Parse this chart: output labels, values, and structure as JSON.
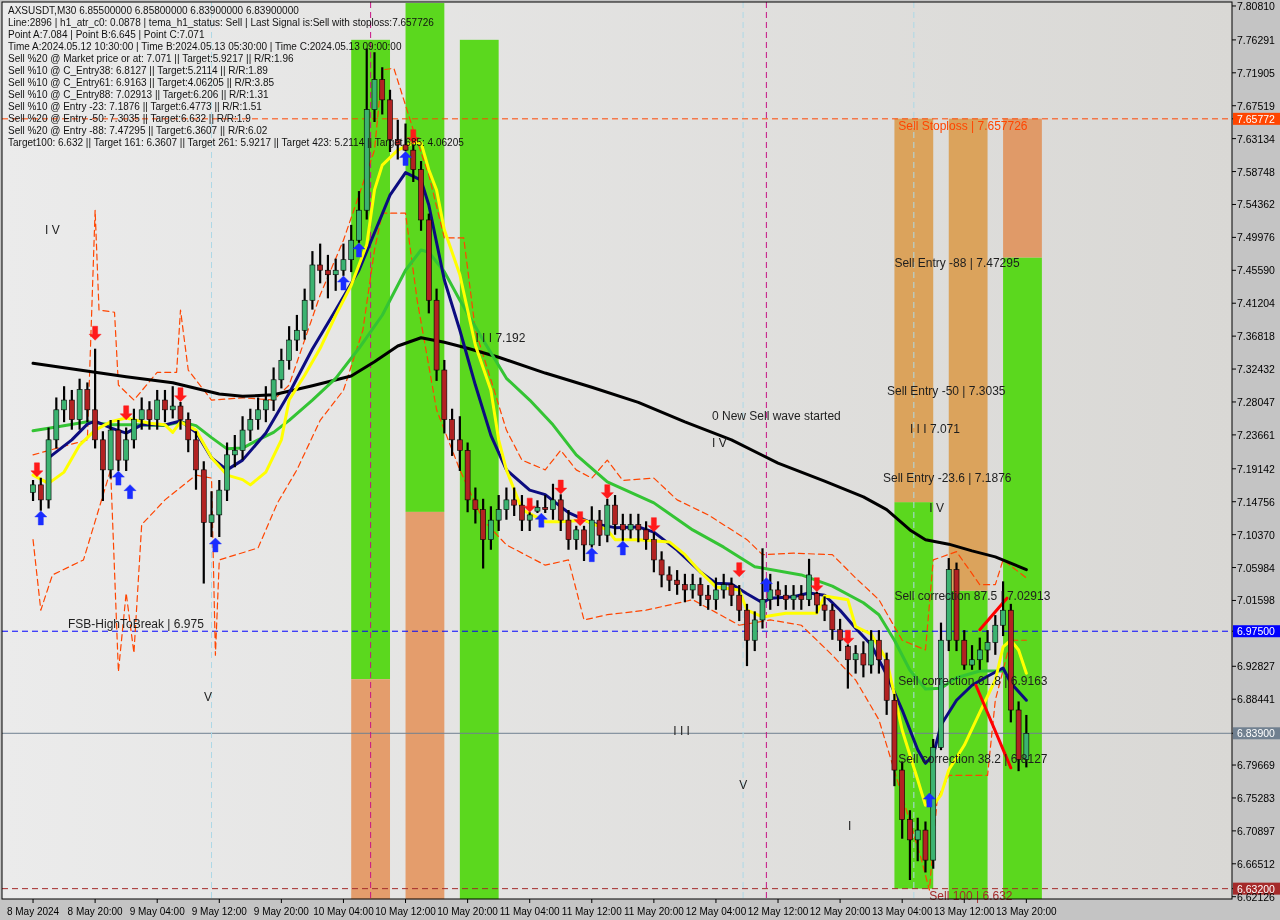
{
  "chart_data": {
    "type": "candlestick",
    "title": "AXSUSDT,M30 6.85500000 6.85800000 6.83900000 6.83900000",
    "xlim": [
      "2024-05-08T08:00",
      "2024-05-14T22:30"
    ],
    "ylim": [
      6.6182,
      7.8134
    ],
    "xticks": [
      {
        "value": "2024-05-08T12:00",
        "label": "8 May 2024"
      },
      {
        "value": "2024-05-08T20:00",
        "label": "8 May 20:00"
      },
      {
        "value": "2024-05-09T04:00",
        "label": "9 May 04:00"
      },
      {
        "value": "2024-05-09T12:00",
        "label": "9 May 12:00"
      },
      {
        "value": "2024-05-09T20:00",
        "label": "9 May 20:00"
      },
      {
        "value": "2024-05-10T04:00",
        "label": "10 May 04:00"
      },
      {
        "value": "2024-05-10T12:00",
        "label": "10 May 12:00"
      },
      {
        "value": "2024-05-10T20:00",
        "label": "10 May 20:00"
      },
      {
        "value": "2024-05-11T04:00",
        "label": "11 May 04:00"
      },
      {
        "value": "2024-05-11T12:00",
        "label": "11 May 12:00"
      },
      {
        "value": "2024-05-11T20:00",
        "label": "11 May 20:00"
      },
      {
        "value": "2024-05-12T04:00",
        "label": "12 May 04:00"
      },
      {
        "value": "2024-05-12T12:00",
        "label": "12 May 12:00"
      },
      {
        "value": "2024-05-12T20:00",
        "label": "12 May 20:00"
      },
      {
        "value": "2024-05-13T04:00",
        "label": "13 May 04:00"
      },
      {
        "value": "2024-05-13T12:00",
        "label": "13 May 12:00"
      },
      {
        "value": "2024-05-13T20:00",
        "label": "13 May 20:00"
      }
    ],
    "yticks": [
      {
        "value": 7.8081,
        "label": "7.80810"
      },
      7.76291,
      7.71905,
      7.67519,
      7.65772,
      7.63134,
      7.58748,
      7.54362,
      7.49976,
      {
        "value": 7.4559,
        "label": "7.45590"
      },
      7.41204,
      7.36818,
      7.32432,
      7.28047,
      7.23661,
      7.19142,
      7.14756,
      {
        "value": 7.1037,
        "label": "7.10370"
      },
      7.05984,
      7.01598,
      {
        "value": 6.975,
        "label": "6.97500"
      },
      6.92827,
      6.88441,
      {
        "value": 6.839,
        "label": "6.83900"
      },
      6.79669,
      6.75283,
      6.70897,
      6.66512,
      {
        "value": 6.632,
        "label": "6.63200"
      },
      6.62126
    ],
    "x": [
      "2024-05-08T12:00",
      "2024-05-08T13:00",
      "2024-05-08T14:00",
      "2024-05-08T15:00",
      "2024-05-08T16:00",
      "2024-05-08T17:00",
      "2024-05-08T18:00",
      "2024-05-08T19:00",
      "2024-05-08T20:00",
      "2024-05-08T21:00",
      "2024-05-08T22:00",
      "2024-05-08T23:00",
      "2024-05-09T00:00",
      "2024-05-09T01:00",
      "2024-05-09T02:00",
      "2024-05-09T03:00",
      "2024-05-09T04:00",
      "2024-05-09T05:00",
      "2024-05-09T06:00",
      "2024-05-09T07:00",
      "2024-05-09T08:00",
      "2024-05-09T09:00",
      "2024-05-09T10:00",
      "2024-05-09T11:00",
      "2024-05-09T12:00",
      "2024-05-09T13:00",
      "2024-05-09T14:00",
      "2024-05-09T15:00",
      "2024-05-09T16:00",
      "2024-05-09T17:00",
      "2024-05-09T18:00",
      "2024-05-09T19:00",
      "2024-05-09T20:00",
      "2024-05-09T21:00",
      "2024-05-09T22:00",
      "2024-05-09T23:00",
      "2024-05-10T00:00",
      "2024-05-10T01:00",
      "2024-05-10T02:00",
      "2024-05-10T03:00",
      "2024-05-10T04:00",
      "2024-05-10T05:00",
      "2024-05-10T06:00",
      "2024-05-10T07:00",
      "2024-05-10T08:00",
      "2024-05-10T09:00",
      "2024-05-10T10:00",
      "2024-05-10T11:00",
      "2024-05-10T12:00",
      "2024-05-10T13:00",
      "2024-05-10T14:00",
      "2024-05-10T15:00",
      "2024-05-10T16:00",
      "2024-05-10T17:00",
      "2024-05-10T18:00",
      "2024-05-10T19:00",
      "2024-05-10T20:00",
      "2024-05-10T21:00",
      "2024-05-10T22:00",
      "2024-05-10T23:00",
      "2024-05-11T00:00",
      "2024-05-11T01:00",
      "2024-05-11T02:00",
      "2024-05-11T03:00",
      "2024-05-11T04:00",
      "2024-05-11T05:00",
      "2024-05-11T06:00",
      "2024-05-11T07:00",
      "2024-05-11T08:00",
      "2024-05-11T09:00",
      "2024-05-11T10:00",
      "2024-05-11T11:00",
      "2024-05-11T12:00",
      "2024-05-11T13:00",
      "2024-05-11T14:00",
      "2024-05-11T15:00",
      "2024-05-11T16:00",
      "2024-05-11T17:00",
      "2024-05-11T18:00",
      "2024-05-11T19:00",
      "2024-05-11T20:00",
      "2024-05-11T21:00",
      "2024-05-11T22:00",
      "2024-05-11T23:00",
      "2024-05-12T00:00",
      "2024-05-12T01:00",
      "2024-05-12T02:00",
      "2024-05-12T03:00",
      "2024-05-12T04:00",
      "2024-05-12T05:00",
      "2024-05-12T06:00",
      "2024-05-12T07:00",
      "2024-05-12T08:00",
      "2024-05-12T09:00",
      "2024-05-12T10:00",
      "2024-05-12T11:00",
      "2024-05-12T12:00",
      "2024-05-12T13:00",
      "2024-05-12T14:00",
      "2024-05-12T15:00",
      "2024-05-12T16:00",
      "2024-05-12T17:00",
      "2024-05-12T18:00",
      "2024-05-12T19:00",
      "2024-05-12T20:00",
      "2024-05-12T21:00",
      "2024-05-12T22:00",
      "2024-05-12T23:00",
      "2024-05-13T00:00",
      "2024-05-13T01:00",
      "2024-05-13T02:00",
      "2024-05-13T03:00",
      "2024-05-13T04:00",
      "2024-05-13T05:00",
      "2024-05-13T06:00",
      "2024-05-13T07:00",
      "2024-05-13T08:00",
      "2024-05-13T09:00",
      "2024-05-13T10:00",
      "2024-05-13T11:00",
      "2024-05-13T12:00",
      "2024-05-13T13:00",
      "2024-05-13T14:00",
      "2024-05-13T15:00",
      "2024-05-13T16:00",
      "2024-05-13T17:00",
      "2024-05-13T18:00",
      "2024-05-13T19:00",
      "2024-05-13T20:00"
    ],
    "ohlc": [
      [
        7.16,
        7.175,
        7.15,
        7.17
      ],
      [
        7.17,
        7.178,
        7.137,
        7.15
      ],
      [
        7.15,
        7.245,
        7.14,
        7.23
      ],
      [
        7.23,
        7.285,
        7.22,
        7.27
      ],
      [
        7.27,
        7.3,
        7.255,
        7.283
      ],
      [
        7.283,
        7.295,
        7.245,
        7.257
      ],
      [
        7.257,
        7.31,
        7.245,
        7.297
      ],
      [
        7.297,
        7.305,
        7.255,
        7.27
      ],
      [
        7.27,
        7.35,
        7.22,
        7.23
      ],
      [
        7.23,
        7.24,
        7.15,
        7.19
      ],
      [
        7.19,
        7.255,
        7.18,
        7.243
      ],
      [
        7.243,
        7.255,
        7.19,
        7.203
      ],
      [
        7.203,
        7.245,
        7.19,
        7.23
      ],
      [
        7.23,
        7.27,
        7.22,
        7.257
      ],
      [
        7.257,
        7.285,
        7.245,
        7.27
      ],
      [
        7.27,
        7.28,
        7.245,
        7.257
      ],
      [
        7.257,
        7.295,
        7.245,
        7.283
      ],
      [
        7.283,
        7.295,
        7.255,
        7.27
      ],
      [
        7.27,
        7.3,
        7.26,
        7.275
      ],
      [
        7.275,
        7.279,
        7.245,
        7.257
      ],
      [
        7.257,
        7.265,
        7.215,
        7.23
      ],
      [
        7.23,
        7.24,
        7.165,
        7.19
      ],
      [
        7.19,
        7.2,
        7.04,
        7.12
      ],
      [
        7.12,
        7.16,
        7.102,
        7.13
      ],
      [
        7.13,
        7.175,
        7.102,
        7.163
      ],
      [
        7.163,
        7.225,
        7.15,
        7.21
      ],
      [
        7.21,
        7.235,
        7.195,
        7.216
      ],
      [
        7.216,
        7.26,
        7.205,
        7.243
      ],
      [
        7.243,
        7.27,
        7.23,
        7.257
      ],
      [
        7.257,
        7.285,
        7.245,
        7.27
      ],
      [
        7.27,
        7.3,
        7.255,
        7.283
      ],
      [
        7.283,
        7.325,
        7.27,
        7.31
      ],
      [
        7.31,
        7.35,
        7.3,
        7.336
      ],
      [
        7.336,
        7.38,
        7.325,
        7.363
      ],
      [
        7.363,
        7.395,
        7.35,
        7.376
      ],
      [
        7.376,
        7.43,
        7.365,
        7.416
      ],
      [
        7.416,
        7.48,
        7.405,
        7.463
      ],
      [
        7.463,
        7.49,
        7.44,
        7.456
      ],
      [
        7.456,
        7.475,
        7.42,
        7.45
      ],
      [
        7.45,
        7.47,
        7.43,
        7.456
      ],
      [
        7.456,
        7.49,
        7.45,
        7.47
      ],
      [
        7.47,
        7.515,
        7.455,
        7.496
      ],
      [
        7.496,
        7.56,
        7.494,
        7.536
      ],
      [
        7.536,
        7.75,
        7.525,
        7.67
      ],
      [
        7.67,
        7.745,
        7.655,
        7.71
      ],
      [
        7.71,
        7.725,
        7.665,
        7.683
      ],
      [
        7.683,
        7.695,
        7.615,
        7.63
      ],
      [
        7.63,
        7.655,
        7.605,
        7.623
      ],
      [
        7.623,
        7.65,
        7.616,
        7.616
      ],
      [
        7.616,
        7.622,
        7.575,
        7.59
      ],
      [
        7.59,
        7.6,
        7.51,
        7.523
      ],
      [
        7.523,
        7.53,
        7.4,
        7.416
      ],
      [
        7.416,
        7.43,
        7.31,
        7.323
      ],
      [
        7.323,
        7.335,
        7.24,
        7.257
      ],
      [
        7.257,
        7.27,
        7.21,
        7.23
      ],
      [
        7.23,
        7.26,
        7.19,
        7.216
      ],
      [
        7.216,
        7.225,
        7.135,
        7.15
      ],
      [
        7.15,
        7.165,
        7.12,
        7.137
      ],
      [
        7.137,
        7.15,
        7.06,
        7.097
      ],
      [
        7.097,
        7.14,
        7.085,
        7.123
      ],
      [
        7.123,
        7.155,
        7.11,
        7.137
      ],
      [
        7.137,
        7.165,
        7.125,
        7.15
      ],
      [
        7.15,
        7.165,
        7.13,
        7.143
      ],
      [
        7.143,
        7.155,
        7.11,
        7.123
      ],
      [
        7.123,
        7.132,
        7.11,
        7.13
      ],
      [
        7.135,
        7.148,
        7.134,
        7.14
      ],
      [
        7.14,
        7.155,
        7.134,
        7.137
      ],
      [
        7.137,
        7.17,
        7.125,
        7.15
      ],
      [
        7.15,
        7.156,
        7.11,
        7.123
      ],
      [
        7.123,
        7.135,
        7.085,
        7.097
      ],
      [
        7.097,
        7.114,
        7.085,
        7.11
      ],
      [
        7.11,
        7.114,
        7.07,
        7.09
      ],
      [
        7.09,
        7.14,
        7.088,
        7.123
      ],
      [
        7.123,
        7.135,
        7.09,
        7.103
      ],
      [
        7.103,
        7.15,
        7.095,
        7.143
      ],
      [
        7.143,
        7.155,
        7.105,
        7.117
      ],
      [
        7.117,
        7.13,
        7.097,
        7.11
      ],
      [
        7.11,
        7.13,
        7.1,
        7.117
      ],
      [
        7.117,
        7.13,
        7.095,
        7.11
      ],
      [
        7.11,
        7.12,
        7.085,
        7.097
      ],
      [
        7.097,
        7.105,
        7.055,
        7.07
      ],
      [
        7.07,
        7.08,
        7.035,
        7.05
      ],
      [
        7.05,
        7.06,
        7.03,
        7.043
      ],
      [
        7.043,
        7.055,
        7.025,
        7.037
      ],
      [
        7.037,
        7.05,
        7.015,
        7.03
      ],
      [
        7.03,
        7.05,
        7.02,
        7.037
      ],
      [
        7.037,
        7.045,
        7.01,
        7.023
      ],
      [
        7.023,
        7.035,
        7.005,
        7.017
      ],
      [
        7.017,
        7.045,
        7.005,
        7.03
      ],
      [
        7.03,
        7.05,
        7.02,
        7.037
      ],
      [
        7.037,
        7.045,
        7.01,
        7.023
      ],
      [
        7.023,
        7.035,
        6.99,
        7.003
      ],
      [
        7.003,
        7.01,
        6.93,
        6.963
      ],
      [
        6.963,
        7.0,
        6.95,
        6.99
      ],
      [
        6.99,
        7.084,
        6.98,
        7.017
      ],
      [
        7.017,
        7.05,
        7.005,
        7.03
      ],
      [
        7.03,
        7.04,
        7.01,
        7.023
      ],
      [
        7.023,
        7.035,
        7.005,
        7.017
      ],
      [
        7.017,
        7.035,
        7.005,
        7.023
      ],
      [
        7.023,
        7.035,
        7.005,
        7.017
      ],
      [
        7.017,
        7.07,
        7.01,
        7.05
      ],
      [
        7.025,
        7.026,
        7.0,
        7.01
      ],
      [
        7.01,
        7.02,
        6.99,
        7.003
      ],
      [
        7.003,
        7.01,
        6.965,
        6.977
      ],
      [
        6.977,
        6.99,
        6.95,
        6.963
      ],
      [
        6.955,
        6.956,
        6.9,
        6.937
      ],
      [
        6.937,
        6.955,
        6.92,
        6.945
      ],
      [
        6.945,
        6.96,
        6.915,
        6.93
      ],
      [
        6.93,
        6.975,
        6.92,
        6.963
      ],
      [
        6.963,
        6.975,
        6.92,
        6.937
      ],
      [
        6.937,
        6.945,
        6.865,
        6.883
      ],
      [
        6.883,
        6.89,
        6.77,
        6.79
      ],
      [
        6.79,
        6.8,
        6.7,
        6.724
      ],
      [
        6.724,
        6.735,
        6.645,
        6.697
      ],
      [
        6.697,
        6.725,
        6.67,
        6.71
      ],
      [
        6.71,
        6.72,
        6.655,
        6.67
      ],
      [
        6.67,
        6.83,
        6.66,
        6.82
      ],
      [
        6.82,
        6.985,
        6.818,
        6.963
      ],
      [
        6.963,
        7.071,
        6.95,
        7.057
      ],
      [
        7.057,
        7.065,
        6.95,
        6.963
      ],
      [
        6.963,
        6.975,
        6.925,
        6.93
      ],
      [
        6.93,
        6.955,
        6.925,
        6.937
      ],
      [
        6.937,
        6.965,
        6.925,
        6.95
      ],
      [
        6.95,
        6.975,
        6.935,
        6.96
      ],
      [
        6.96,
        6.995,
        6.945,
        6.983
      ],
      [
        6.983,
        7.04,
        6.97,
        7.003
      ],
      [
        7.003,
        7.01,
        6.855,
        6.87
      ],
      [
        6.87,
        6.88,
        6.79,
        6.804
      ],
      [
        6.804,
        6.862,
        6.795,
        6.839
      ]
    ],
    "colors": [
      "#3cb371",
      "#b22222",
      "#3cb371",
      "#3cb371",
      "#3cb371",
      "#b22222",
      "#3cb371",
      "#b22222",
      "#b22222",
      "#b22222",
      "#3cb371",
      "#b22222",
      "#3cb371",
      "#3cb371",
      "#3cb371",
      "#b22222",
      "#3cb371",
      "#b22222",
      "#3cb371",
      "#b22222",
      "#b22222",
      "#b22222",
      "#b22222",
      "#3cb371",
      "#3cb371",
      "#3cb371",
      "#3cb371",
      "#3cb371",
      "#3cb371",
      "#3cb371",
      "#3cb371",
      "#3cb371",
      "#3cb371",
      "#3cb371",
      "#3cb371",
      "#3cb371",
      "#3cb371",
      "#b22222",
      "#b22222",
      "#3cb371",
      "#3cb371",
      "#3cb371",
      "#3cb371",
      "#3cb371",
      "#3cb371",
      "#b22222",
      "#b22222",
      "#b22222",
      "#b22222",
      "#b22222",
      "#b22222",
      "#b22222",
      "#b22222",
      "#b22222",
      "#b22222",
      "#b22222",
      "#b22222",
      "#b22222",
      "#b22222",
      "#3cb371",
      "#3cb371",
      "#3cb371",
      "#b22222",
      "#b22222",
      "#3cb371",
      "#3cb371",
      "#b22222",
      "#3cb371",
      "#b22222",
      "#b22222",
      "#3cb371",
      "#b22222",
      "#3cb371",
      "#b22222",
      "#3cb371",
      "#b22222",
      "#b22222",
      "#3cb371",
      "#b22222",
      "#b22222",
      "#b22222",
      "#b22222",
      "#b22222",
      "#b22222",
      "#b22222",
      "#3cb371",
      "#b22222",
      "#b22222",
      "#3cb371",
      "#3cb371",
      "#b22222",
      "#b22222",
      "#b22222",
      "#3cb371",
      "#3cb371",
      "#3cb371",
      "#b22222",
      "#b22222",
      "#3cb371",
      "#b22222",
      "#3cb371",
      "#b22222",
      "#b22222",
      "#b22222",
      "#b22222",
      "#b22222",
      "#3cb371",
      "#b22222",
      "#3cb371",
      "#b22222",
      "#b22222",
      "#b22222",
      "#b22222",
      "#b22222",
      "#3cb371",
      "#b22222",
      "#3cb371",
      "#3cb371",
      "#3cb371",
      "#b22222",
      "#b22222",
      "#3cb371",
      "#3cb371",
      "#3cb371",
      "#3cb371",
      "#3cb371",
      "#b22222",
      "#b22222",
      "#3cb371"
    ],
    "series": [
      {
        "type": "bar",
        "color": "#5bd81e",
        "x": [
          "2024-05-10T07:30",
          "2024-05-10T14:30",
          "2024-05-10T21:30",
          "2024-05-13T05:30",
          "2024-05-13T12:30",
          "2024-05-13T19:30"
        ],
        "base": [
          6.911,
          7.134,
          6.618,
          6.632,
          6.618,
          6.618
        ],
        "values": [
          0.852,
          0.678,
          1.145,
          0.515,
          0.411,
          0.855
        ]
      },
      {
        "type": "bar",
        "x": [
          "2024-05-10T07:30",
          "2024-05-10T14:30",
          "2024-05-13T05:30",
          "2024-05-13T12:30",
          "2024-05-13T19:30"
        ],
        "base": [
          6.618,
          6.618,
          7.147,
          7.029,
          7.473
        ],
        "values": [
          0.293,
          0.516,
          0.511,
          0.629,
          0.185
        ],
        "colors": [
          "#e49d6c",
          "#e49d6c",
          "#dba35c",
          "#dba35c",
          "#e09a68"
        ]
      },
      {
        "type": "line",
        "color": "#ff4500",
        "line_style": "dashed",
        "x": [
          "2024-05-08T12:00",
          "2024-05-08T19:00",
          "2024-05-08T20:00",
          "2024-05-08T20:30",
          "2024-05-08T22:30",
          "2024-05-08T23:00",
          "2024-05-09T01:00",
          "2024-05-09T04:00",
          "2024-05-09T06:30",
          "2024-05-09T07:00",
          "2024-05-09T08:00",
          "2024-05-09T11:00",
          "2024-05-09T15:00",
          "2024-05-09T19:00",
          "2024-05-09T21:00",
          "2024-05-10T01:00",
          "2024-05-10T04:00",
          "2024-05-10T08:00",
          "2024-05-10T09:00",
          "2024-05-10T10:30",
          "2024-05-10T13:00",
          "2024-05-10T15:00",
          "2024-05-10T17:00",
          "2024-05-10T19:30",
          "2024-05-10T21:00",
          "2024-05-10T23:00",
          "2024-05-11T01:00",
          "2024-05-11T03:00",
          "2024-05-11T06:00",
          "2024-05-11T08:00",
          "2024-05-11T10:00",
          "2024-05-11T12:00",
          "2024-05-11T14:00",
          "2024-05-11T16:00",
          "2024-05-11T20:00",
          "2024-05-11T23:00",
          "2024-05-12T03:00",
          "2024-05-12T08:00",
          "2024-05-12T10:00",
          "2024-05-12T14:00",
          "2024-05-12T19:00",
          "2024-05-12T22:00",
          "2024-05-13T01:00",
          "2024-05-13T04:00",
          "2024-05-13T07:00",
          "2024-05-13T08:00",
          "2024-05-13T11:00",
          "2024-05-13T14:00",
          "2024-05-13T16:00",
          "2024-05-13T17:00",
          "2024-05-13T20:00"
        ],
        "values": [
          7.21,
          7.23,
          7.536,
          7.403,
          7.4,
          7.303,
          7.283,
          7.32,
          7.32,
          7.403,
          7.323,
          7.283,
          7.286,
          7.283,
          7.303,
          7.423,
          7.496,
          7.616,
          7.723,
          7.725,
          7.643,
          7.583,
          7.499,
          7.499,
          7.376,
          7.31,
          7.243,
          7.203,
          7.19,
          7.216,
          7.19,
          7.179,
          7.203,
          7.176,
          7.179,
          7.15,
          7.13,
          7.097,
          7.077,
          7.079,
          7.077,
          7.046,
          7.017,
          6.963,
          6.95,
          7.07,
          7.081,
          7.037,
          7.037,
          7.07,
          7.046
        ]
      },
      {
        "type": "line",
        "color": "#ff4500",
        "line_style": "dashed",
        "x": [
          "2024-05-08T12:00",
          "2024-05-08T13:00",
          "2024-05-08T14:30",
          "2024-05-08T18:30",
          "2024-05-08T22:00",
          "2024-05-08T23:00",
          "2024-05-09T00:00",
          "2024-05-09T01:00",
          "2024-05-09T02:00",
          "2024-05-09T05:00",
          "2024-05-09T09:00",
          "2024-05-09T11:00",
          "2024-05-09T11:30",
          "2024-05-09T12:00",
          "2024-05-09T17:00",
          "2024-05-09T19:30",
          "2024-05-09T22:00",
          "2024-05-10T01:00",
          "2024-05-10T04:00",
          "2024-05-10T06:30",
          "2024-05-10T08:00",
          "2024-05-10T09:00",
          "2024-05-10T12:00",
          "2024-05-10T13:30",
          "2024-05-10T16:00",
          "2024-05-10T19:00",
          "2024-05-10T22:00",
          "2024-05-11T01:00",
          "2024-05-11T06:00",
          "2024-05-11T09:00",
          "2024-05-11T11:00",
          "2024-05-11T14:00",
          "2024-05-11T19:00",
          "2024-05-12T01:00",
          "2024-05-12T07:00",
          "2024-05-12T11:00",
          "2024-05-12T15:00",
          "2024-05-12T19:00",
          "2024-05-12T22:00",
          "2024-05-13T01:00",
          "2024-05-13T06:30",
          "2024-05-13T07:30",
          "2024-05-13T08:30",
          "2024-05-13T10:00",
          "2024-05-13T15:00",
          "2024-05-13T16:00",
          "2024-05-13T18:00",
          "2024-05-13T20:00"
        ],
        "values": [
          7.097,
          7.003,
          7.05,
          7.07,
          7.19,
          6.921,
          7.026,
          6.946,
          7.117,
          7.15,
          7.183,
          7.179,
          6.943,
          7.07,
          7.086,
          7.146,
          7.19,
          7.256,
          7.296,
          7.376,
          7.483,
          7.532,
          7.532,
          7.416,
          7.27,
          7.19,
          7.123,
          7.09,
          7.063,
          7.07,
          6.99,
          6.997,
          7.003,
          7.017,
          6.983,
          6.99,
          6.983,
          6.943,
          6.91,
          6.857,
          6.67,
          6.63,
          6.75,
          6.783,
          6.783,
          6.883,
          6.963,
          6.963
        ]
      },
      {
        "type": "line",
        "color": "#000000",
        "x": [
          "2024-05-08T12:00",
          "2024-05-08T18:00",
          "2024-05-09T00:00",
          "2024-05-09T06:00",
          "2024-05-09T12:00",
          "2024-05-09T15:00",
          "2024-05-09T19:00",
          "2024-05-10T00:00",
          "2024-05-10T05:00",
          "2024-05-10T08:00",
          "2024-05-10T11:00",
          "2024-05-10T14:00",
          "2024-05-10T17:00",
          "2024-05-10T20:00",
          "2024-05-11T00:00",
          "2024-05-11T06:00",
          "2024-05-11T12:00",
          "2024-05-11T18:00",
          "2024-05-12T00:00",
          "2024-05-12T06:00",
          "2024-05-12T12:00",
          "2024-05-12T18:00",
          "2024-05-12T23:00",
          "2024-05-13T02:00",
          "2024-05-13T05:00",
          "2024-05-13T07:00",
          "2024-05-13T10:00",
          "2024-05-13T13:00",
          "2024-05-13T16:00",
          "2024-05-13T20:00"
        ],
        "values": [
          7.332,
          7.323,
          7.314,
          7.306,
          7.291,
          7.288,
          7.29,
          7.302,
          7.315,
          7.334,
          7.355,
          7.366,
          7.36,
          7.352,
          7.34,
          7.319,
          7.3,
          7.28,
          7.254,
          7.23,
          7.199,
          7.175,
          7.154,
          7.137,
          7.11,
          7.097,
          7.091,
          7.082,
          7.074,
          7.057
        ]
      },
      {
        "type": "line",
        "color": "#34c434",
        "x": [
          "2024-05-08T12:00",
          "2024-05-08T15:00",
          "2024-05-08T19:00",
          "2024-05-08T22:00",
          "2024-05-09T01:00",
          "2024-05-09T05:00",
          "2024-05-09T07:00",
          "2024-05-09T09:00",
          "2024-05-09T11:00",
          "2024-05-09T13:00",
          "2024-05-09T15:00",
          "2024-05-09T17:00",
          "2024-05-09T19:00",
          "2024-05-09T21:00",
          "2024-05-10T00:00",
          "2024-05-10T03:00",
          "2024-05-10T06:00",
          "2024-05-10T09:00",
          "2024-05-10T12:00",
          "2024-05-10T14:00",
          "2024-05-10T15:00",
          "2024-05-10T17:00",
          "2024-05-10T19:00",
          "2024-05-10T22:00",
          "2024-05-11T01:00",
          "2024-05-11T04:00",
          "2024-05-11T07:00",
          "2024-05-11T10:00",
          "2024-05-11T14:00",
          "2024-05-11T20:00",
          "2024-05-12T01:00",
          "2024-05-12T05:00",
          "2024-05-12T09:00",
          "2024-05-12T15:00",
          "2024-05-12T19:00",
          "2024-05-12T23:00",
          "2024-05-13T01:00",
          "2024-05-13T03:00",
          "2024-05-13T05:00",
          "2024-05-13T07:00",
          "2024-05-13T09:00",
          "2024-05-13T11:00",
          "2024-05-13T14:00",
          "2024-05-13T17:00"
        ],
        "values": [
          7.242,
          7.247,
          7.254,
          7.25,
          7.25,
          7.249,
          7.254,
          7.249,
          7.233,
          7.218,
          7.219,
          7.23,
          7.24,
          7.256,
          7.283,
          7.312,
          7.352,
          7.396,
          7.456,
          7.483,
          7.48,
          7.454,
          7.416,
          7.363,
          7.312,
          7.283,
          7.25,
          7.21,
          7.174,
          7.146,
          7.11,
          7.087,
          7.061,
          7.05,
          7.035,
          7.013,
          6.997,
          6.963,
          6.923,
          6.898,
          6.899,
          6.913,
          6.922,
          6.922
        ]
      },
      {
        "type": "line",
        "color": "#0c0c80",
        "x": [
          "2024-05-08T14:00",
          "2024-05-08T17:00",
          "2024-05-08T19:00",
          "2024-05-08T20:00",
          "2024-05-08T22:00",
          "2024-05-09T00:00",
          "2024-05-09T02:00",
          "2024-05-09T05:00",
          "2024-05-09T07:00",
          "2024-05-09T09:00",
          "2024-05-09T11:00",
          "2024-05-09T13:00",
          "2024-05-09T15:00",
          "2024-05-09T18:00",
          "2024-05-09T21:00",
          "2024-05-10T00:00",
          "2024-05-10T03:00",
          "2024-05-10T06:00",
          "2024-05-10T08:00",
          "2024-05-10T10:00",
          "2024-05-10T12:00",
          "2024-05-10T14:00",
          "2024-05-10T15:00",
          "2024-05-10T17:00",
          "2024-05-10T19:00",
          "2024-05-10T21:00",
          "2024-05-10T23:00",
          "2024-05-11T01:00",
          "2024-05-11T04:00",
          "2024-05-11T06:00",
          "2024-05-11T09:00",
          "2024-05-11T12:00",
          "2024-05-11T15:00",
          "2024-05-11T18:00",
          "2024-05-11T20:00",
          "2024-05-11T23:00",
          "2024-05-12T02:00",
          "2024-05-12T04:00",
          "2024-05-12T06:00",
          "2024-05-12T08:00",
          "2024-05-12T10:00",
          "2024-05-12T11:00",
          "2024-05-12T14:00",
          "2024-05-12T16:00",
          "2024-05-12T18:00",
          "2024-05-12T20:00",
          "2024-05-12T22:00",
          "2024-05-13T00:00",
          "2024-05-13T02:00",
          "2024-05-13T04:00",
          "2024-05-13T06:00",
          "2024-05-13T07:00",
          "2024-05-13T08:00",
          "2024-05-13T09:00",
          "2024-05-13T11:00",
          "2024-05-13T13:00",
          "2024-05-13T15:00",
          "2024-05-13T17:00",
          "2024-05-13T18:00",
          "2024-05-13T20:00"
        ],
        "values": [
          7.206,
          7.23,
          7.251,
          7.255,
          7.246,
          7.239,
          7.25,
          7.25,
          7.255,
          7.24,
          7.206,
          7.19,
          7.203,
          7.239,
          7.292,
          7.351,
          7.403,
          7.456,
          7.506,
          7.556,
          7.586,
          7.576,
          7.543,
          7.443,
          7.376,
          7.303,
          7.236,
          7.19,
          7.163,
          7.157,
          7.133,
          7.119,
          7.113,
          7.114,
          7.107,
          7.083,
          7.054,
          7.039,
          7.038,
          7.025,
          7.013,
          7.019,
          7.021,
          7.026,
          7.023,
          7.003,
          6.979,
          6.957,
          6.917,
          6.87,
          6.817,
          6.799,
          6.81,
          6.85,
          6.883,
          6.903,
          6.915,
          6.926,
          6.906,
          6.883
        ]
      },
      {
        "type": "line",
        "color": "#ffff00",
        "x": [
          "2024-05-08T12:00",
          "2024-05-08T14:00",
          "2024-05-08T16:00",
          "2024-05-08T18:00",
          "2024-05-08T20:00",
          "2024-05-08T22:00",
          "2024-05-09T00:00",
          "2024-05-09T03:00",
          "2024-05-09T05:00",
          "2024-05-09T06:00",
          "2024-05-09T07:00",
          "2024-05-09T09:00",
          "2024-05-09T11:00",
          "2024-05-09T13:00",
          "2024-05-09T15:00",
          "2024-05-09T16:00",
          "2024-05-09T18:00",
          "2024-05-09T20:00",
          "2024-05-09T21:00",
          "2024-05-09T23:00",
          "2024-05-10T01:00",
          "2024-05-10T03:00",
          "2024-05-10T05:00",
          "2024-05-10T07:00",
          "2024-05-10T08:00",
          "2024-05-10T09:00",
          "2024-05-10T11:00",
          "2024-05-10T13:00",
          "2024-05-10T14:00",
          "2024-05-10T15:00",
          "2024-05-10T16:00",
          "2024-05-10T17:00",
          "2024-05-10T19:00",
          "2024-05-10T21:00",
          "2024-05-10T23:00",
          "2024-05-11T00:00",
          "2024-05-11T01:00",
          "2024-05-11T03:00",
          "2024-05-11T06:00",
          "2024-05-11T08:00",
          "2024-05-11T11:00",
          "2024-05-11T14:00",
          "2024-05-11T15:00",
          "2024-05-11T18:00",
          "2024-05-11T22:00",
          "2024-05-12T00:00",
          "2024-05-12T02:00",
          "2024-05-12T04:00",
          "2024-05-12T07:00",
          "2024-05-12T08:00",
          "2024-05-12T10:00",
          "2024-05-12T13:00",
          "2024-05-12T17:00",
          "2024-05-12T18:00",
          "2024-05-12T21:00",
          "2024-05-12T22:00",
          "2024-05-13T00:00",
          "2024-05-13T02:00",
          "2024-05-13T04:00",
          "2024-05-13T06:00",
          "2024-05-13T07:00",
          "2024-05-13T08:00",
          "2024-05-13T09:00",
          "2024-05-13T10:00",
          "2024-05-13T12:00",
          "2024-05-13T14:00",
          "2024-05-13T16:00",
          "2024-05-13T17:00",
          "2024-05-13T18:00",
          "2024-05-13T19:00",
          "2024-05-13T20:00"
        ],
        "values": [
          7.183,
          7.172,
          7.187,
          7.223,
          7.243,
          7.254,
          7.259,
          7.252,
          7.25,
          7.24,
          7.254,
          7.243,
          7.206,
          7.183,
          7.177,
          7.17,
          7.187,
          7.23,
          7.283,
          7.316,
          7.352,
          7.396,
          7.436,
          7.49,
          7.563,
          7.596,
          7.616,
          7.626,
          7.626,
          7.59,
          7.563,
          7.51,
          7.45,
          7.356,
          7.296,
          7.23,
          7.19,
          7.137,
          7.121,
          7.121,
          7.123,
          7.11,
          7.097,
          7.097,
          7.094,
          7.077,
          7.054,
          7.034,
          7.03,
          7.003,
          6.994,
          6.999,
          6.999,
          7.022,
          7.017,
          6.981,
          6.971,
          6.937,
          6.843,
          6.777,
          6.743,
          6.743,
          6.757,
          6.79,
          6.823,
          6.867,
          6.91,
          6.954,
          6.963,
          6.95,
          6.919
        ]
      },
      {
        "type": "line",
        "color": "#ff0000",
        "x": [
          "2024-05-13T13:30",
          "2024-05-13T18:00"
        ],
        "values": [
          6.903,
          6.793
        ]
      },
      {
        "type": "line",
        "color": "#ff0000",
        "x": [
          "2024-05-13T14:00",
          "2024-05-13T17:30"
        ],
        "values": [
          6.977,
          7.019
        ]
      },
      {
        "type": "scatter",
        "marker": "triangle",
        "color": "#ff1a1a",
        "x": [
          "2024-05-08T12:30",
          "2024-05-08T20:00",
          "2024-05-09T00:00",
          "2024-05-09T07:00",
          "2024-05-10T13:00",
          "2024-05-11T04:00",
          "2024-05-11T08:00",
          "2024-05-11T10:30",
          "2024-05-11T14:00",
          "2024-05-11T20:00",
          "2024-05-12T07:00",
          "2024-05-12T17:00",
          "2024-05-12T21:00"
        ],
        "values": [
          7.19,
          7.372,
          7.266,
          7.29,
          7.634,
          7.143,
          7.167,
          7.125,
          7.161,
          7.117,
          7.057,
          7.037,
          6.967
        ]
      },
      {
        "type": "scatter",
        "marker": "triangle",
        "color": "#1a2cff",
        "x": [
          "2024-05-08T13:00",
          "2024-05-08T23:00",
          "2024-05-09T00:30",
          "2024-05-09T11:30",
          "2024-05-10T04:00",
          "2024-05-10T06:00",
          "2024-05-10T12:00",
          "2024-05-11T05:30",
          "2024-05-11T12:00",
          "2024-05-11T16:00",
          "2024-05-12T10:30",
          "2024-05-13T07:30"
        ],
        "values": [
          7.126,
          7.179,
          7.161,
          7.09,
          7.439,
          7.483,
          7.605,
          7.123,
          7.077,
          7.086,
          7.037,
          6.75
        ]
      }
    ],
    "ref_lines": [
      {
        "axis": "y",
        "value": 7.657726,
        "color": "#ff4500",
        "line_style": "dashed"
      },
      {
        "axis": "y",
        "value": 6.975,
        "color": "#0000ff",
        "line_style": "dashed",
        "label": "FSB-HighToBreak | 6.975"
      },
      {
        "axis": "y",
        "value": 6.839,
        "color": "#708090",
        "line_style": "solid"
      },
      {
        "axis": "y",
        "value": 6.632,
        "color": "#a52a2a",
        "line_style": "dashed"
      },
      {
        "axis": "x",
        "value": "2024-05-09T11:00",
        "color": "#add8e6",
        "line_style": "dashed"
      },
      {
        "axis": "x",
        "value": "2024-05-10T07:30",
        "color": "#c71585",
        "line_style": "dashed"
      },
      {
        "axis": "x",
        "value": "2024-05-12T07:30",
        "color": "#add8e6",
        "line_style": "dashed"
      },
      {
        "axis": "x",
        "value": "2024-05-12T10:30",
        "color": "#c71585",
        "line_style": "dashed"
      },
      {
        "axis": "x",
        "value": "2024-05-13T05:30",
        "color": "#add8e6",
        "line_style": "dashed"
      }
    ],
    "annotations": [
      "Line:2896 | h1_atr_c0: 0.0878 | tema_h1_status: Sell | Last Signal is:Sell with stoploss:7.657726",
      "Point A:7.084 | Point B:6.645 | Point C:7.071",
      "Time A:2024.05.12 10:30:00 | Time B:2024.05.13 05:30:00 | Time C:2024.05.13 09:00:00",
      "Sell %20 @ Market price or at: 7.071 || Target:5.9217 || R/R:1.96",
      "Sell %10 @ C_Entry38: 6.8127 || Target:5.2114 || R/R:1.89",
      "Sell %10 @ C_Entry61: 6.9163 || Target:4.06205 || R/R:3.85",
      "Sell %10 @ C_Entry88: 7.02913 || Target:6.206 || R/R:1.31",
      "Sell %10 @ Entry -23: 7.1876 || Target:6.4773 || R/R:1.51",
      "Sell %20 @ Entry -50: 7.3035 || Target:6.632 || R/R:1.9",
      "Sell %20 @ Entry -88: 7.47295 || Target:6.3607 || R/R:6.02",
      "Target100: 6.632 || Target 161: 6.3607 || Target 261: 5.9217 || Target 423: 5.2114 || Target 685: 4.06205",
      "I V",
      "V",
      "0 New Sell wave started",
      "I V",
      "I",
      "Sell Entry -50 | 7.3035",
      "Sell Entry -23.6 | 7.1876",
      {
        "text": "I I I 7.192",
        "x": "2024-05-10T21:00",
        "y": 7.366
      },
      {
        "text": "I I I",
        "x": "2024-05-11T22:30",
        "y": 6.842
      },
      {
        "text": "V",
        "x": "2024-05-12T07:00",
        "y": 6.77
      },
      {
        "text": "Sell Stoploss | 7.657726",
        "x": "2024-05-13T03:30",
        "y": 7.657726
      },
      {
        "text": "Sell Entry -88 | 7.47295",
        "x": "2024-05-13T03:00",
        "y": 7.466
      },
      {
        "text": "I I I 7.071",
        "x": "2024-05-13T05:00",
        "y": 7.245
      },
      {
        "text": "I V",
        "x": "2024-05-13T07:30",
        "y": 7.139
      },
      {
        "text": "Sell correction 87.5 | 7.02913",
        "x": "2024-05-13T03:00",
        "y": 7.022
      },
      {
        "text": "Sell correction 61.8 | 6.9163",
        "x": "2024-05-13T03:30",
        "y": 6.909
      },
      {
        "text": "Sell correction 38.2 | 6.8127",
        "x": "2024-05-13T03:30",
        "y": 6.805
      },
      {
        "text": "Sell 100 | 6.632",
        "x": "2024-05-13T07:30",
        "y": 6.632
      }
    ]
  }
}
